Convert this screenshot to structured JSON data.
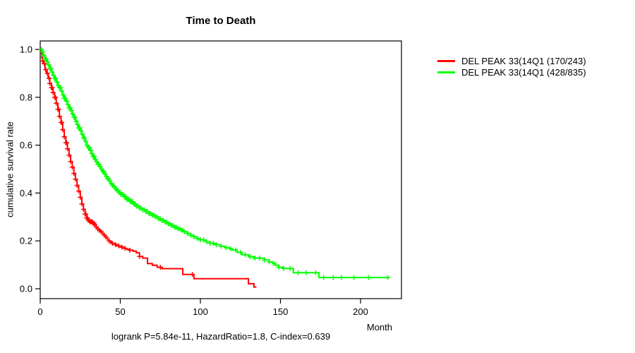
{
  "chart_data": {
    "type": "line",
    "subtype": "kaplan-meier-step-survival",
    "title": "Time to Death",
    "xlabel": "Month",
    "ylabel": "cumulative survival rate",
    "annotation": "logrank P=5.84e-11, HazardRatio=1.8, C-index=0.639",
    "xlim": [
      0,
      225
    ],
    "ylim": [
      0,
      1
    ],
    "xticks": [
      "0",
      "50",
      "100",
      "150",
      "200"
    ],
    "yticks": [
      "0.0",
      "0.2",
      "0.4",
      "0.6",
      "0.8",
      "1.0"
    ],
    "grid": false,
    "legend_position": "right-outside",
    "axis_color": "#000000",
    "series": [
      {
        "name": "DEL PEAK 33(14Q1 (170/243)",
        "color": "#FF0000",
        "events_total": "170/243",
        "points": [
          [
            0,
            1.0
          ],
          [
            0.5,
            0.985
          ],
          [
            1,
            0.965
          ],
          [
            1.5,
            0.952
          ],
          [
            2,
            0.94
          ],
          [
            3,
            0.915
          ],
          [
            4,
            0.9
          ],
          [
            5,
            0.88
          ],
          [
            6,
            0.858
          ],
          [
            7,
            0.84
          ],
          [
            8,
            0.82
          ],
          [
            9,
            0.8
          ],
          [
            10,
            0.775
          ],
          [
            11,
            0.75
          ],
          [
            12,
            0.72
          ],
          [
            13,
            0.695
          ],
          [
            14,
            0.665
          ],
          [
            15,
            0.635
          ],
          [
            16,
            0.61
          ],
          [
            17,
            0.585
          ],
          [
            18,
            0.558
          ],
          [
            19,
            0.532
          ],
          [
            20,
            0.508
          ],
          [
            21,
            0.482
          ],
          [
            22,
            0.458
          ],
          [
            23,
            0.432
          ],
          [
            24,
            0.408
          ],
          [
            25,
            0.382
          ],
          [
            26,
            0.355
          ],
          [
            27,
            0.332
          ],
          [
            28,
            0.312
          ],
          [
            29,
            0.296
          ],
          [
            30,
            0.286
          ],
          [
            31,
            0.28
          ],
          [
            33,
            0.274
          ],
          [
            34,
            0.268
          ],
          [
            35,
            0.258
          ],
          [
            36,
            0.25
          ],
          [
            37,
            0.244
          ],
          [
            38,
            0.238
          ],
          [
            39,
            0.23
          ],
          [
            40,
            0.224
          ],
          [
            41,
            0.216
          ],
          [
            42,
            0.208
          ],
          [
            43,
            0.2
          ],
          [
            44,
            0.194
          ],
          [
            45,
            0.19
          ],
          [
            47,
            0.184
          ],
          [
            48,
            0.179
          ],
          [
            50,
            0.174
          ],
          [
            52,
            0.169
          ],
          [
            54,
            0.165
          ],
          [
            56,
            0.161
          ],
          [
            58,
            0.157
          ],
          [
            60,
            0.15
          ],
          [
            62,
            0.135
          ],
          [
            64,
            0.128
          ],
          [
            67,
            0.105
          ],
          [
            70,
            0.098
          ],
          [
            73,
            0.09
          ],
          [
            76,
            0.084
          ],
          [
            89,
            0.06
          ],
          [
            96,
            0.042
          ],
          [
            130,
            0.021
          ],
          [
            133.5,
            0.007
          ],
          [
            135,
            0.007
          ]
        ],
        "censor_months": [
          1.5,
          2.5,
          3.5,
          4.5,
          5.5,
          6,
          7,
          7.5,
          8,
          9,
          9.5,
          10,
          11,
          11.5,
          12,
          13,
          13.5,
          14,
          15,
          16,
          16.5,
          17,
          18,
          19,
          20,
          21,
          22,
          23,
          24,
          25,
          26,
          27,
          28,
          28.5,
          29,
          29.5,
          30,
          30.5,
          31,
          31.5,
          32,
          32.5,
          33,
          33.5,
          34,
          35,
          36,
          37,
          38,
          40,
          41,
          43,
          45,
          47,
          49,
          51,
          53,
          56,
          62,
          75,
          95
        ]
      },
      {
        "name": "DEL PEAK 33(14Q1 (428/835)",
        "color": "#00FF00",
        "events_total": "428/835",
        "points": [
          [
            0,
            1.0
          ],
          [
            1,
            0.99
          ],
          [
            2,
            0.975
          ],
          [
            3,
            0.96
          ],
          [
            4,
            0.948
          ],
          [
            5,
            0.935
          ],
          [
            6,
            0.92
          ],
          [
            7,
            0.905
          ],
          [
            8,
            0.892
          ],
          [
            9,
            0.878
          ],
          [
            10,
            0.863
          ],
          [
            11,
            0.85
          ],
          [
            12,
            0.84
          ],
          [
            13,
            0.826
          ],
          [
            14,
            0.81
          ],
          [
            15,
            0.796
          ],
          [
            16,
            0.784
          ],
          [
            17,
            0.77
          ],
          [
            18,
            0.756
          ],
          [
            19,
            0.744
          ],
          [
            20,
            0.73
          ],
          [
            21,
            0.716
          ],
          [
            22,
            0.7
          ],
          [
            23,
            0.686
          ],
          [
            24,
            0.672
          ],
          [
            25,
            0.66
          ],
          [
            26,
            0.645
          ],
          [
            27,
            0.63
          ],
          [
            28,
            0.615
          ],
          [
            29,
            0.6
          ],
          [
            30,
            0.59
          ],
          [
            31,
            0.578
          ],
          [
            32,
            0.565
          ],
          [
            33,
            0.552
          ],
          [
            34,
            0.54
          ],
          [
            35,
            0.53
          ],
          [
            36,
            0.52
          ],
          [
            37,
            0.51
          ],
          [
            38,
            0.5
          ],
          [
            39,
            0.49
          ],
          [
            40,
            0.48
          ],
          [
            41,
            0.47
          ],
          [
            42,
            0.46
          ],
          [
            43,
            0.45
          ],
          [
            44,
            0.44
          ],
          [
            45,
            0.432
          ],
          [
            46,
            0.424
          ],
          [
            47,
            0.417
          ],
          [
            48,
            0.41
          ],
          [
            49,
            0.402
          ],
          [
            50,
            0.395
          ],
          [
            52,
            0.385
          ],
          [
            54,
            0.374
          ],
          [
            56,
            0.364
          ],
          [
            58,
            0.354
          ],
          [
            60,
            0.345
          ],
          [
            62,
            0.337
          ],
          [
            64,
            0.33
          ],
          [
            66,
            0.322
          ],
          [
            68,
            0.314
          ],
          [
            70,
            0.307
          ],
          [
            72,
            0.3
          ],
          [
            74,
            0.292
          ],
          [
            76,
            0.285
          ],
          [
            78,
            0.278
          ],
          [
            80,
            0.271
          ],
          [
            82,
            0.264
          ],
          [
            84,
            0.257
          ],
          [
            86,
            0.251
          ],
          [
            88,
            0.245
          ],
          [
            90,
            0.238
          ],
          [
            92,
            0.231
          ],
          [
            94,
            0.224
          ],
          [
            96,
            0.217
          ],
          [
            98,
            0.21
          ],
          [
            100,
            0.204
          ],
          [
            103,
            0.197
          ],
          [
            106,
            0.19
          ],
          [
            109,
            0.184
          ],
          [
            112,
            0.178
          ],
          [
            115,
            0.172
          ],
          [
            118,
            0.167
          ],
          [
            120,
            0.162
          ],
          [
            123,
            0.152
          ],
          [
            126,
            0.142
          ],
          [
            130,
            0.134
          ],
          [
            134,
            0.128
          ],
          [
            140,
            0.12
          ],
          [
            143,
            0.112
          ],
          [
            145,
            0.105
          ],
          [
            147,
            0.098
          ],
          [
            149,
            0.09
          ],
          [
            152,
            0.085
          ],
          [
            158,
            0.067
          ],
          [
            174,
            0.047
          ],
          [
            218,
            0.047
          ]
        ],
        "censor_months": [
          0.75,
          1.5,
          2.25,
          3,
          3.75,
          4.5,
          5.25,
          6,
          6.75,
          7.5,
          8.25,
          9,
          9.75,
          10.5,
          11.25,
          12,
          12.75,
          13.5,
          14.25,
          15,
          15.75,
          16.5,
          17.25,
          18,
          18.75,
          19.5,
          20.25,
          21,
          21.75,
          22.5,
          23.25,
          24,
          24.75,
          25.5,
          26.25,
          27,
          27.75,
          28.5,
          29.25,
          30,
          30.75,
          31.5,
          32.25,
          33,
          33.75,
          34.5,
          35.25,
          36,
          36.75,
          37.5,
          38.25,
          39,
          39.75,
          40.5,
          41.25,
          42,
          42.75,
          43.5,
          44.25,
          45,
          45.75,
          46.5,
          47.25,
          48,
          48.75,
          49.5,
          50.25,
          51,
          51.75,
          52.5,
          53.25,
          54,
          54.75,
          55.5,
          56.25,
          57,
          57.75,
          58.5,
          59.25,
          60,
          61,
          62,
          63,
          64,
          65,
          66,
          67,
          68,
          69,
          70,
          71,
          72,
          73,
          74,
          75,
          76,
          77,
          78,
          79,
          80,
          81,
          82,
          83,
          84,
          85,
          86,
          87,
          88,
          89,
          90,
          92,
          94,
          96,
          98,
          100,
          102,
          104,
          106,
          108,
          110,
          113,
          116,
          119,
          122,
          125,
          128,
          131,
          134,
          137,
          140,
          143,
          146,
          149,
          152,
          156,
          161,
          166,
          172,
          177,
          183,
          188,
          196,
          205,
          217
        ]
      }
    ]
  }
}
